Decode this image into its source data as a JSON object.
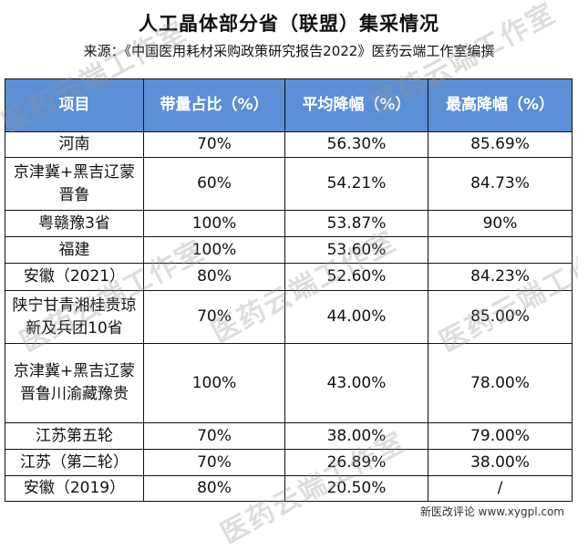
{
  "title": "人工晶体部分省（联盟）集采情况",
  "source": "来源：《中国医用耗材采购政策研究报告2022》医药云端工作室编撰",
  "headers": [
    "项目",
    "带量占比（%）",
    "平均降幅（%）",
    "最高降幅（%）"
  ],
  "rows": [
    {
      "name": "河南",
      "share": "70%",
      "avg": "56.30%",
      "max": "85.69%"
    },
    {
      "name": "京津冀+黑吉辽蒙晋鲁",
      "share": "60%",
      "avg": "54.21%",
      "max": "84.73%"
    },
    {
      "name": "粤赣豫3省",
      "share": "100%",
      "avg": "53.87%",
      "max": "90%"
    },
    {
      "name": "福建",
      "share": "100%",
      "avg": "53.60%",
      "max": ""
    },
    {
      "name": "安徽（2021）",
      "share": "80%",
      "avg": "52.60%",
      "max": "84.23%"
    },
    {
      "name": "陕宁甘青湘桂贵琼新及兵团10省",
      "share": "70%",
      "avg": "44.00%",
      "max": "85.00%"
    },
    {
      "name": "京津冀+黑吉辽蒙晋鲁川渝藏豫贵",
      "share": "100%",
      "avg": "43.00%",
      "max": "78.00%"
    },
    {
      "name": "江苏第五轮",
      "share": "70%",
      "avg": "38.00%",
      "max": "79.00%"
    },
    {
      "name": "江苏（第二轮）",
      "share": "70%",
      "avg": "26.89%",
      "max": "38.00%"
    },
    {
      "name": "安徽（2019）",
      "share": "80%",
      "avg": "20.50%",
      "max": "/"
    }
  ],
  "watermark": "医药云端工作室",
  "footer_watermark": "新医改评论 www.xygpl.com",
  "colors": {
    "header_bg": "#5b8fd6",
    "header_text": "#ffffff",
    "border": "#111111"
  }
}
